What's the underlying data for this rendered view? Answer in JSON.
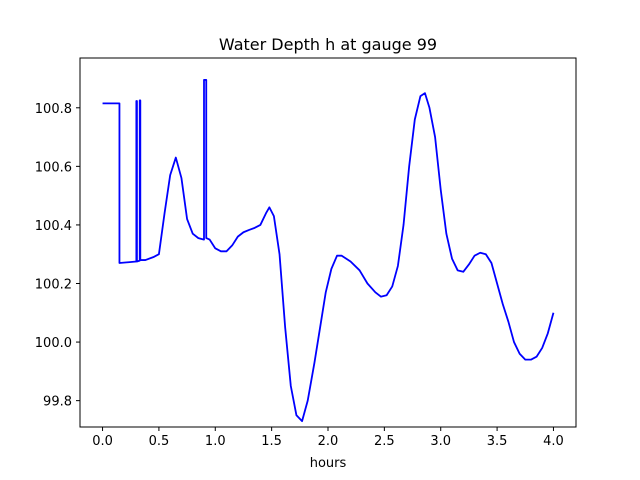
{
  "chart_data": {
    "type": "line",
    "title": "Water Depth h at gauge 99",
    "xlabel": "hours",
    "ylabel": "",
    "xlim": [
      -0.2,
      4.2
    ],
    "ylim": [
      99.71,
      100.97
    ],
    "x_ticks": [
      {
        "value": 0.0,
        "label": "0.0"
      },
      {
        "value": 0.5,
        "label": "0.5"
      },
      {
        "value": 1.0,
        "label": "1.0"
      },
      {
        "value": 1.5,
        "label": "1.5"
      },
      {
        "value": 2.0,
        "label": "2.0"
      },
      {
        "value": 2.5,
        "label": "2.5"
      },
      {
        "value": 3.0,
        "label": "3.0"
      },
      {
        "value": 3.5,
        "label": "3.5"
      },
      {
        "value": 4.0,
        "label": "4.0"
      }
    ],
    "y_ticks": [
      {
        "value": 99.8,
        "label": "99.8"
      },
      {
        "value": 100.0,
        "label": "100.0"
      },
      {
        "value": 100.2,
        "label": "100.2"
      },
      {
        "value": 100.4,
        "label": "100.4"
      },
      {
        "value": 100.6,
        "label": "100.6"
      },
      {
        "value": 100.8,
        "label": "100.8"
      }
    ],
    "grid": false,
    "series": [
      {
        "color": "#0000ff",
        "points": [
          [
            0.0,
            100.815
          ],
          [
            0.15,
            100.815
          ],
          [
            0.15,
            100.27
          ],
          [
            0.3,
            100.275
          ],
          [
            0.3,
            100.823
          ],
          [
            0.305,
            100.823
          ],
          [
            0.305,
            100.275
          ],
          [
            0.33,
            100.278
          ],
          [
            0.33,
            100.825
          ],
          [
            0.335,
            100.825
          ],
          [
            0.335,
            100.28
          ],
          [
            0.38,
            100.28
          ],
          [
            0.45,
            100.29
          ],
          [
            0.5,
            100.3
          ],
          [
            0.55,
            100.44
          ],
          [
            0.6,
            100.57
          ],
          [
            0.65,
            100.63
          ],
          [
            0.7,
            100.56
          ],
          [
            0.75,
            100.42
          ],
          [
            0.8,
            100.37
          ],
          [
            0.85,
            100.355
          ],
          [
            0.9,
            100.35
          ],
          [
            0.9,
            100.895
          ],
          [
            0.92,
            100.895
          ],
          [
            0.92,
            100.355
          ],
          [
            0.95,
            100.35
          ],
          [
            1.0,
            100.32
          ],
          [
            1.05,
            100.31
          ],
          [
            1.1,
            100.31
          ],
          [
            1.15,
            100.33
          ],
          [
            1.2,
            100.36
          ],
          [
            1.25,
            100.375
          ],
          [
            1.3,
            100.383
          ],
          [
            1.35,
            100.39
          ],
          [
            1.4,
            100.4
          ],
          [
            1.45,
            100.44
          ],
          [
            1.48,
            100.46
          ],
          [
            1.52,
            100.43
          ],
          [
            1.57,
            100.3
          ],
          [
            1.62,
            100.05
          ],
          [
            1.67,
            99.85
          ],
          [
            1.72,
            99.75
          ],
          [
            1.77,
            99.73
          ],
          [
            1.82,
            99.8
          ],
          [
            1.88,
            99.93
          ],
          [
            1.93,
            100.05
          ],
          [
            1.98,
            100.17
          ],
          [
            2.03,
            100.25
          ],
          [
            2.08,
            100.295
          ],
          [
            2.12,
            100.295
          ],
          [
            2.2,
            100.275
          ],
          [
            2.28,
            100.245
          ],
          [
            2.35,
            100.2
          ],
          [
            2.42,
            100.17
          ],
          [
            2.47,
            100.155
          ],
          [
            2.52,
            100.16
          ],
          [
            2.57,
            100.19
          ],
          [
            2.62,
            100.26
          ],
          [
            2.67,
            100.4
          ],
          [
            2.72,
            100.6
          ],
          [
            2.77,
            100.76
          ],
          [
            2.82,
            100.84
          ],
          [
            2.86,
            100.85
          ],
          [
            2.9,
            100.8
          ],
          [
            2.95,
            100.7
          ],
          [
            3.0,
            100.52
          ],
          [
            3.05,
            100.37
          ],
          [
            3.1,
            100.285
          ],
          [
            3.15,
            100.245
          ],
          [
            3.2,
            100.24
          ],
          [
            3.25,
            100.265
          ],
          [
            3.3,
            100.295
          ],
          [
            3.35,
            100.305
          ],
          [
            3.4,
            100.3
          ],
          [
            3.45,
            100.27
          ],
          [
            3.5,
            100.2
          ],
          [
            3.55,
            100.13
          ],
          [
            3.6,
            100.07
          ],
          [
            3.65,
            100.0
          ],
          [
            3.7,
            99.96
          ],
          [
            3.75,
            99.94
          ],
          [
            3.8,
            99.94
          ],
          [
            3.85,
            99.95
          ],
          [
            3.9,
            99.98
          ],
          [
            3.95,
            100.03
          ],
          [
            4.0,
            100.1
          ]
        ]
      }
    ]
  }
}
